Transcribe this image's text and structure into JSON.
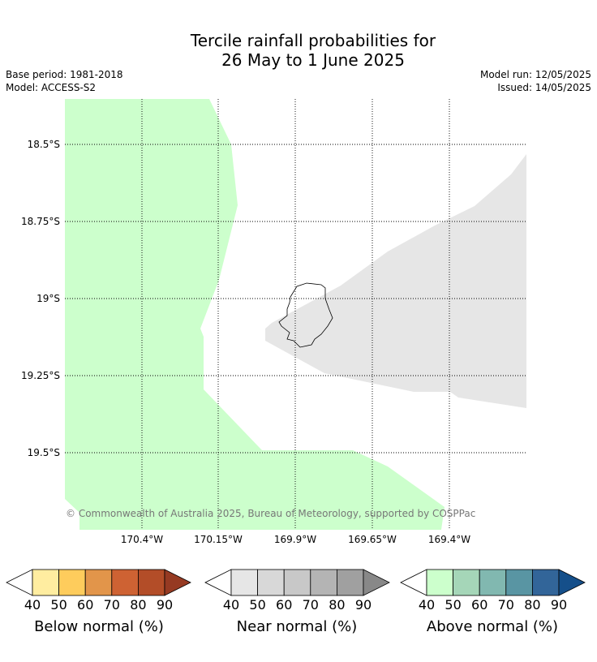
{
  "title": {
    "line1": "Tercile rainfall probabilities for",
    "line2": "26 May to 1 June 2025"
  },
  "meta": {
    "base_period": "Base period: 1981-2018",
    "model": "Model: ACCESS-S2",
    "model_run": "Model run: 12/05/2025",
    "issued": "Issued: 14/05/2025"
  },
  "map": {
    "lat_labels": [
      "18.5°S",
      "18.75°S",
      "19°S",
      "19.25°S",
      "19.5°S"
    ],
    "lon_labels": [
      "170.4°W",
      "170.15°W",
      "169.9°W",
      "169.65°W",
      "169.4°W"
    ],
    "copyright": "© Commonwealth of Australia 2025, Bureau of Meteorology, supported by COSPPac",
    "regions": [
      {
        "category": "above-normal",
        "probability_bin": "40-50",
        "color": "#ccffcc"
      },
      {
        "category": "near-normal",
        "probability_bin": "40-50",
        "color": "#e6e6e6"
      }
    ]
  },
  "colorbars": [
    {
      "name": "Below normal (%)",
      "ticks": [
        "40",
        "50",
        "60",
        "70",
        "80",
        "90"
      ],
      "colors": [
        "#ffffff",
        "#ffeda0",
        "#fecc5c",
        "#e2954a",
        "#ce6233",
        "#b34d28",
        "#963a22"
      ]
    },
    {
      "name": "Near normal (%)",
      "ticks": [
        "40",
        "50",
        "60",
        "70",
        "80",
        "90"
      ],
      "colors": [
        "#ffffff",
        "#e6e6e6",
        "#d8d8d8",
        "#c8c8c8",
        "#b4b4b4",
        "#a0a0a0",
        "#888888"
      ]
    },
    {
      "name": "Above normal (%)",
      "ticks": [
        "40",
        "50",
        "60",
        "70",
        "80",
        "90"
      ],
      "colors": [
        "#ffffff",
        "#ccffcc",
        "#a5d6b8",
        "#81b8b0",
        "#5995a3",
        "#326599",
        "#154f8a"
      ]
    }
  ]
}
